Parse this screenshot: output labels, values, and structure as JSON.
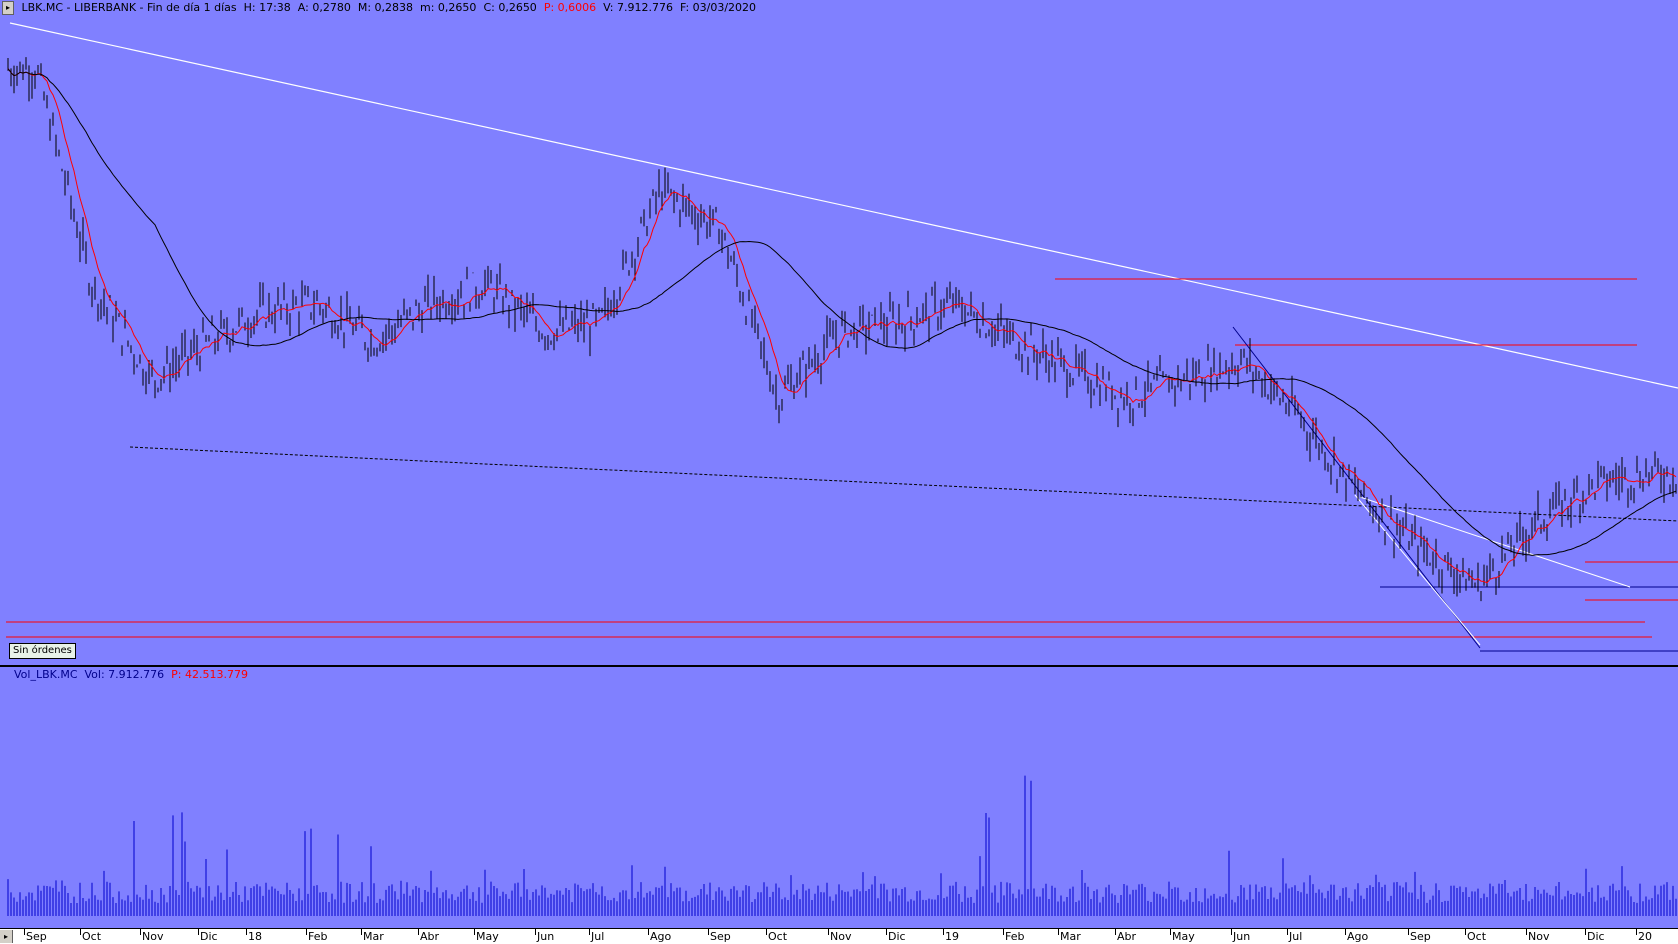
{
  "header": {
    "symbol": "LBK.MC - LIBERBANK",
    "period": "Fin de día 1 días",
    "h": "H: 17:38",
    "a": "A: 0,2780",
    "m_high": "M: 0,2838",
    "m_low": "m: 0,2650",
    "c": "C: 0,2650",
    "p": "P: 0,6006",
    "v": "V: 7.912.776",
    "f": "F: 03/03/2020"
  },
  "orders_button": "Sin órdenes",
  "volume_header": {
    "label": "Vol_LBK.MC",
    "vol": "Vol: 7.912.776",
    "p": "P: 42.513.779"
  },
  "colors": {
    "background": "#8080ff",
    "candles": "#000000",
    "ma_short": "#ff0000",
    "ma_long": "#000000",
    "trendline": "#ffffff",
    "horizontal_red": "#ff0000",
    "horizontal_blue": "#00008b",
    "volume": "#0000cc"
  },
  "months": [
    "Sep",
    "Oct",
    "Nov",
    "Dic",
    "18",
    "Feb",
    "Mar",
    "Abr",
    "May",
    "Jun",
    "Jul",
    "Ago",
    "Sep",
    "Oct",
    "Nov",
    "Dic",
    "19",
    "Feb",
    "Mar",
    "Abr",
    "May",
    "Jun",
    "Jul",
    "Ago",
    "Sep",
    "Oct",
    "Nov",
    "Dic",
    "20"
  ],
  "chart_data": [
    {
      "type": "line",
      "x": [
        "Sep",
        "Oct",
        "Nov",
        "Dic",
        "18",
        "Feb",
        "Mar",
        "Abr",
        "May",
        "Jun",
        "Jul",
        "Ago",
        "Sep",
        "Oct",
        "Nov",
        "Dic",
        "19",
        "Feb",
        "Mar",
        "Abr",
        "May",
        "Jun",
        "Jul",
        "Ago",
        "Sep",
        "Oct",
        "Nov",
        "Dic",
        "20"
      ],
      "series": [
        {
          "values": [
            0.95,
            0.72,
            0.62,
            0.66,
            0.69,
            0.7,
            0.66,
            0.7,
            0.72,
            0.67,
            0.68,
            0.82,
            0.78,
            0.6,
            0.67,
            0.68,
            0.7,
            0.66,
            0.63,
            0.6,
            0.62,
            0.64,
            0.58,
            0.5,
            0.44,
            0.4,
            0.47,
            0.51,
            0.52
          ]
        }
      ]
    },
    {
      "type": "bar",
      "x": [
        "Sep",
        "Oct",
        "Nov",
        "Dic",
        "18",
        "Feb",
        "Mar",
        "Abr",
        "May",
        "Jun",
        "Jul",
        "Ago",
        "Sep",
        "Oct",
        "Nov",
        "Dic",
        "19",
        "Feb",
        "Mar",
        "Abr",
        "May",
        "Jun",
        "Jul",
        "Ago",
        "Sep",
        "Oct",
        "Nov",
        "Dic",
        "20"
      ],
      "series": [
        {
          "values": [
            6,
            3,
            14,
            9,
            6,
            9,
            7,
            5,
            6,
            4,
            5,
            5,
            4,
            7,
            6,
            5,
            4,
            22,
            5,
            4,
            5,
            9,
            5,
            4,
            5,
            4,
            5,
            6,
            4
          ]
        }
      ]
    }
  ]
}
